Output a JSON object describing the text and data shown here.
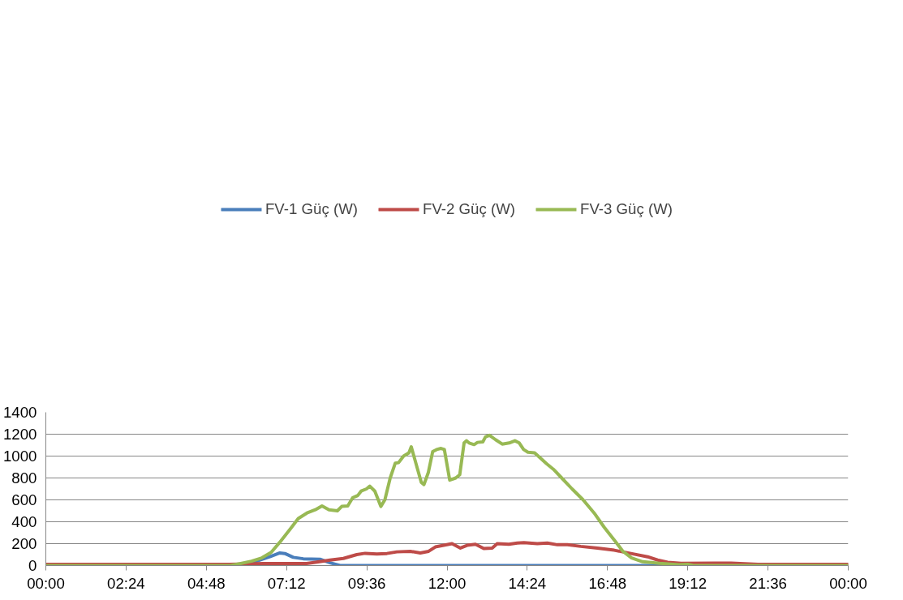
{
  "chart_data": {
    "type": "line",
    "xlim": [
      0,
      24
    ],
    "ylim": [
      0,
      1400
    ],
    "xticks": [
      {
        "value": 0,
        "label": "00:00"
      },
      {
        "value": 2.4,
        "label": "02:24"
      },
      {
        "value": 4.8,
        "label": "04:48"
      },
      {
        "value": 7.2,
        "label": "07:12"
      },
      {
        "value": 9.6,
        "label": "09:36"
      },
      {
        "value": 12,
        "label": "12:00"
      },
      {
        "value": 14.4,
        "label": "14:24"
      },
      {
        "value": 16.8,
        "label": "16:48"
      },
      {
        "value": 19.2,
        "label": "19:12"
      },
      {
        "value": 21.6,
        "label": "21:36"
      },
      {
        "value": 24,
        "label": "00:00"
      }
    ],
    "yticks": [
      0,
      200,
      400,
      600,
      800,
      1000,
      1200,
      1400
    ],
    "grid": "y",
    "legend": "top",
    "marker": "none",
    "line_style": "solid",
    "series": [
      {
        "name": "FV-1 Güç (W)",
        "color": "#4a7ebb",
        "x": [
          5.9,
          6.3,
          6.7,
          7.0,
          7.15,
          7.4,
          7.7,
          8.2,
          8.5,
          8.8,
          19.0
        ],
        "values": [
          15,
          40,
          80,
          115,
          110,
          75,
          62,
          58,
          25,
          0,
          0
        ]
      },
      {
        "name": "FV-2 Güç (W)",
        "color": "#be4b48",
        "x": [
          0,
          5.5,
          6.5,
          7.8,
          8.06,
          8.5,
          8.9,
          9.3,
          9.55,
          9.9,
          10.2,
          10.5,
          10.9,
          11.2,
          11.45,
          11.65,
          11.9,
          12.15,
          12.4,
          12.6,
          12.85,
          13.1,
          13.35,
          13.5,
          13.85,
          14.1,
          14.3,
          14.7,
          15.0,
          15.3,
          15.6,
          16.0,
          16.5,
          17.0,
          17.5,
          18.0,
          18.3,
          18.6,
          19.0,
          20.0,
          20.5,
          21.3,
          24
        ],
        "values": [
          12,
          12,
          18,
          18,
          30,
          50,
          65,
          100,
          112,
          105,
          110,
          125,
          130,
          115,
          130,
          170,
          185,
          200,
          160,
          185,
          195,
          155,
          160,
          200,
          195,
          205,
          210,
          200,
          205,
          190,
          190,
          175,
          160,
          140,
          110,
          80,
          50,
          30,
          20,
          22,
          22,
          12,
          12
        ]
      },
      {
        "name": "FV-3 Güç (W)",
        "color": "#98b954",
        "x": [
          0,
          5.52,
          5.77,
          6.15,
          6.46,
          6.74,
          6.99,
          7.3,
          7.55,
          7.81,
          8.06,
          8.26,
          8.47,
          8.72,
          8.85,
          9.03,
          9.18,
          9.33,
          9.43,
          9.59,
          9.69,
          9.84,
          10.02,
          10.14,
          10.3,
          10.45,
          10.55,
          10.7,
          10.86,
          10.93,
          11.1,
          11.23,
          11.31,
          11.44,
          11.57,
          11.69,
          11.82,
          11.92,
          12.08,
          12.26,
          12.38,
          12.51,
          12.58,
          12.66,
          12.81,
          12.91,
          13.07,
          13.15,
          13.27,
          13.45,
          13.65,
          13.86,
          14.03,
          14.16,
          14.29,
          14.42,
          14.62,
          14.8,
          14.98,
          15.18,
          15.43,
          15.74,
          16.07,
          16.4,
          16.7,
          17.01,
          17.26,
          17.52,
          17.85,
          18.36,
          18.94,
          19.2,
          19.37,
          24
        ],
        "values": [
          0,
          0,
          15,
          40,
          70,
          120,
          210,
          330,
          430,
          480,
          510,
          545,
          510,
          500,
          540,
          545,
          620,
          640,
          680,
          700,
          725,
          680,
          540,
          600,
          800,
          935,
          940,
          1000,
          1030,
          1085,
          900,
          760,
          740,
          850,
          1040,
          1060,
          1070,
          1060,
          780,
          800,
          830,
          1120,
          1140,
          1120,
          1105,
          1125,
          1130,
          1175,
          1190,
          1150,
          1110,
          1120,
          1140,
          1120,
          1060,
          1035,
          1030,
          980,
          930,
          880,
          800,
          700,
          600,
          480,
          350,
          230,
          130,
          70,
          35,
          20,
          8,
          12,
          0,
          0
        ]
      }
    ]
  }
}
